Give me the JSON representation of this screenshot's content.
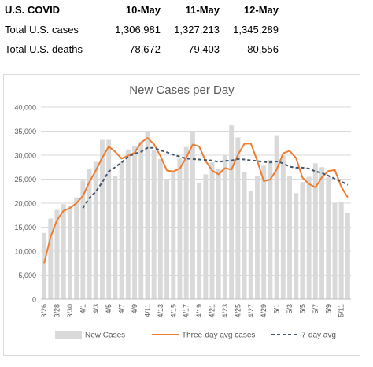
{
  "summary_table": {
    "header": [
      "U.S. COVID",
      "10-May",
      "11-May",
      "12-May"
    ],
    "rows": [
      {
        "label": "Total U.S. cases",
        "values": [
          "1,306,981",
          "1,327,213",
          "1,345,289"
        ]
      },
      {
        "label": "Total U.S. deaths",
        "values": [
          "78,672",
          "79,403",
          "80,556"
        ]
      }
    ]
  },
  "chart_data": {
    "type": "bar",
    "title": "New Cases per Day",
    "categories": [
      "3/26",
      "3/27",
      "3/28",
      "3/29",
      "3/30",
      "3/31",
      "4/1",
      "4/2",
      "4/3",
      "4/4",
      "4/5",
      "4/6",
      "4/7",
      "4/8",
      "4/9",
      "4/10",
      "4/11",
      "4/12",
      "4/13",
      "4/14",
      "4/15",
      "4/16",
      "4/17",
      "4/18",
      "4/19",
      "4/20",
      "4/21",
      "4/22",
      "4/23",
      "4/24",
      "4/25",
      "4/26",
      "4/27",
      "4/28",
      "4/29",
      "4/30",
      "5/1",
      "5/2",
      "5/3",
      "5/4",
      "5/5",
      "5/6",
      "5/7",
      "5/8",
      "5/9",
      "5/10",
      "5/11",
      "5/12"
    ],
    "tick_labels": [
      "3/26",
      "3/28",
      "3/30",
      "4/1",
      "4/3",
      "4/5",
      "4/7",
      "4/9",
      "4/11",
      "4/13",
      "4/15",
      "4/17",
      "4/19",
      "4/21",
      "4/23",
      "4/25",
      "4/27",
      "4/29",
      "5/1",
      "5/3",
      "5/5",
      "5/7",
      "5/9",
      "5/11"
    ],
    "series": [
      {
        "name": "New Cases",
        "type": "bar",
        "color": "#d9d9d9",
        "values": [
          13800,
          16800,
          18600,
          19800,
          19500,
          21200,
          24700,
          27200,
          28600,
          33200,
          33200,
          25600,
          28600,
          31200,
          31800,
          32800,
          35000,
          31100,
          29200,
          25000,
          26800,
          29300,
          31700,
          35000,
          24300,
          26000,
          28500,
          27100,
          30000,
          36200,
          33700,
          26400,
          22500,
          25700,
          27800,
          29000,
          34000,
          30000,
          25600,
          22100,
          24400,
          25500,
          28300,
          27500,
          25400,
          20100,
          20200,
          18000
        ]
      },
      {
        "name": "Three-day avg cases",
        "type": "line",
        "color": "#ed7d31",
        "values": [
          7500,
          13000,
          16500,
          18400,
          19000,
          20000,
          21500,
          24400,
          26800,
          29500,
          31800,
          30700,
          29300,
          29900,
          30500,
          32600,
          33600,
          32300,
          29800,
          26800,
          26600,
          27200,
          29500,
          32200,
          31800,
          28800,
          26800,
          26000,
          27300,
          27000,
          30100,
          32400,
          32400,
          28800,
          24600,
          24900,
          27000,
          30400,
          30900,
          29400,
          25300,
          24000,
          23300,
          25400,
          26700,
          26900,
          23400,
          21200
        ]
      },
      {
        "name": "7-day avg",
        "type": "line",
        "color": "#44546a",
        "dash": "4,3",
        "values": [
          null,
          null,
          null,
          null,
          null,
          null,
          19000,
          21100,
          22400,
          24400,
          26600,
          27500,
          28500,
          29700,
          30300,
          30700,
          31500,
          31500,
          31000,
          30600,
          30100,
          29700,
          29300,
          29200,
          29100,
          29000,
          28900,
          28600,
          28800,
          28900,
          29200,
          29100,
          28900,
          28800,
          28600,
          28500,
          28700,
          28300,
          27600,
          27400,
          27400,
          27200,
          26600,
          26300,
          25700,
          25100,
          24500,
          23800
        ]
      }
    ],
    "y_axis": {
      "min": 0,
      "max": 40000,
      "step": 5000,
      "tick_labels": [
        "0",
        "5,000",
        "10,000",
        "15,000",
        "20,000",
        "25,000",
        "30,000",
        "35,000",
        "40,000"
      ]
    },
    "grid": true,
    "legend_position": "bottom",
    "colors": {
      "bar": "#d9d9d9",
      "grid": "#d9d9d9",
      "axis_text": "#595959",
      "title": "#595959"
    }
  }
}
